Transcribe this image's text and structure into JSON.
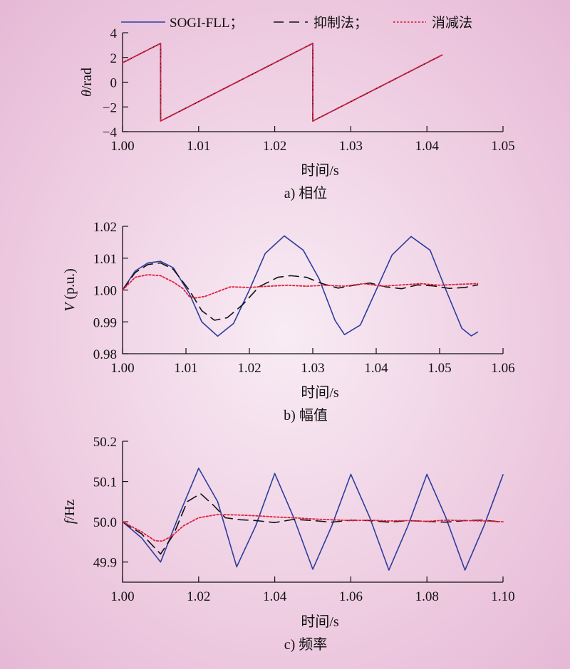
{
  "legend": [
    {
      "label": "SOGI-FLL；",
      "color": "#2b3e9e",
      "dash": "solid"
    },
    {
      "label": "抑制法；",
      "color": "#111111",
      "dash": "long-dash"
    },
    {
      "label": "消减法",
      "color": "#e0203a",
      "dash": "dotted"
    }
  ],
  "chart_data": [
    {
      "type": "line",
      "caption": "a) 相位",
      "xlabel": "时间/s",
      "ylabel_italic": "θ",
      "ylabel_rest": "/rad",
      "xlim": [
        1.0,
        1.05
      ],
      "ylim": [
        -4,
        4
      ],
      "xticks": [
        "1.00",
        "1.01",
        "1.02",
        "1.03",
        "1.04",
        "1.05"
      ],
      "yticks": [
        "4",
        "2",
        "0",
        "−2",
        "−4"
      ],
      "series": [
        {
          "name": "SOGI-FLL",
          "x": [
            1.0,
            1.005,
            1.005,
            1.025,
            1.025,
            1.042
          ],
          "y": [
            1.57,
            3.14,
            -3.14,
            3.14,
            -3.14,
            2.2
          ]
        },
        {
          "name": "抑制法",
          "x": [
            1.0,
            1.005,
            1.005,
            1.025,
            1.025,
            1.042
          ],
          "y": [
            1.57,
            3.14,
            -3.14,
            3.14,
            -3.14,
            2.2
          ]
        },
        {
          "name": "消减法",
          "x": [
            1.0,
            1.005,
            1.005,
            1.025,
            1.025,
            1.042
          ],
          "y": [
            1.57,
            3.14,
            -3.14,
            3.14,
            -3.14,
            2.2
          ]
        }
      ]
    },
    {
      "type": "line",
      "caption": "b) 幅值",
      "xlabel": "时间/s",
      "ylabel_italic": "V",
      "ylabel_rest": " (p.u.)",
      "xlim": [
        1.0,
        1.06
      ],
      "ylim": [
        0.98,
        1.02
      ],
      "xticks": [
        "1.00",
        "1.01",
        "1.02",
        "1.03",
        "1.04",
        "1.05",
        "1.06"
      ],
      "yticks": [
        "1.02",
        "1.01",
        "1.00",
        "0.99",
        "0.98"
      ],
      "series": [
        {
          "name": "SOGI-FLL",
          "x": [
            1.0,
            1.002,
            1.004,
            1.006,
            1.008,
            1.0105,
            1.0125,
            1.015,
            1.0175,
            1.02,
            1.0225,
            1.0255,
            1.0285,
            1.031,
            1.0335,
            1.035,
            1.0375,
            1.04,
            1.0425,
            1.0455,
            1.0485,
            1.051,
            1.0535,
            1.055,
            1.056
          ],
          "y": [
            1.0,
            1.006,
            1.0085,
            1.009,
            1.007,
            0.999,
            0.99,
            0.9855,
            0.9895,
            1.0,
            1.0115,
            1.017,
            1.0125,
            1.0035,
            0.9905,
            0.986,
            0.989,
            1.0,
            1.011,
            1.0168,
            1.0125,
            1.0,
            0.988,
            0.9856,
            0.9868
          ]
        },
        {
          "name": "抑制法",
          "x": [
            1.0,
            1.002,
            1.004,
            1.006,
            1.008,
            1.0105,
            1.0125,
            1.0145,
            1.0165,
            1.019,
            1.0215,
            1.0245,
            1.0265,
            1.029,
            1.0315,
            1.034,
            1.0365,
            1.039,
            1.0415,
            1.044,
            1.0465,
            1.049,
            1.0515,
            1.054,
            1.056
          ],
          "y": [
            1.0,
            1.0055,
            1.008,
            1.0085,
            1.0065,
            1.0,
            0.9935,
            0.9905,
            0.9913,
            0.9955,
            1.001,
            1.004,
            1.0045,
            1.004,
            1.002,
            1.0006,
            1.0015,
            1.0022,
            1.001,
            1.0004,
            1.0016,
            1.0013,
            1.0005,
            1.0008,
            1.0016
          ]
        },
        {
          "name": "消减法",
          "x": [
            1.0,
            1.002,
            1.004,
            1.006,
            1.008,
            1.0095,
            1.0105,
            1.0115,
            1.013,
            1.015,
            1.017,
            1.02,
            1.023,
            1.026,
            1.029,
            1.032,
            1.035,
            1.038,
            1.041,
            1.044,
            1.047,
            1.05,
            1.053,
            1.056
          ],
          "y": [
            1.0,
            1.004,
            1.0048,
            1.0045,
            1.0025,
            1.0005,
            0.998,
            0.9975,
            0.998,
            0.9995,
            1.001,
            1.0008,
            1.0012,
            1.0015,
            1.0012,
            1.0015,
            1.0012,
            1.002,
            1.0012,
            1.0016,
            1.002,
            1.0015,
            1.0018,
            1.002
          ]
        }
      ]
    },
    {
      "type": "line",
      "caption": "c) 频率",
      "xlabel": "时间/s",
      "ylabel_italic": "f",
      "ylabel_rest": "/Hz",
      "xlim": [
        1.0,
        1.1
      ],
      "ylim": [
        49.85,
        50.2
      ],
      "xticks": [
        "1.00",
        "1.02",
        "1.04",
        "1.06",
        "1.08",
        "1.10"
      ],
      "yticks": [
        "50.2",
        "50.1",
        "50.0",
        "49.9"
      ],
      "series": [
        {
          "name": "SOGI-FLL",
          "x": [
            1.0,
            1.005,
            1.01,
            1.015,
            1.02,
            1.025,
            1.03,
            1.035,
            1.04,
            1.045,
            1.05,
            1.055,
            1.06,
            1.065,
            1.07,
            1.075,
            1.08,
            1.085,
            1.09,
            1.095,
            1.1
          ],
          "y": [
            50.0,
            49.96,
            49.9,
            50.02,
            50.133,
            50.05,
            49.888,
            49.99,
            50.12,
            50.01,
            49.882,
            49.99,
            50.118,
            50.01,
            49.88,
            49.99,
            50.118,
            50.01,
            49.88,
            49.99,
            50.117
          ]
        },
        {
          "name": "抑制法",
          "x": [
            1.0,
            1.005,
            1.01,
            1.0135,
            1.017,
            1.0205,
            1.024,
            1.027,
            1.031,
            1.035,
            1.04,
            1.045,
            1.05,
            1.055,
            1.06,
            1.065,
            1.07,
            1.075,
            1.08,
            1.085,
            1.09,
            1.095,
            1.1
          ],
          "y": [
            50.0,
            49.97,
            49.92,
            49.97,
            50.05,
            50.07,
            50.04,
            50.01,
            50.005,
            50.003,
            49.998,
            50.006,
            50.003,
            49.999,
            50.004,
            50.003,
            49.999,
            50.003,
            50.001,
            49.999,
            50.003,
            50.004,
            49.999
          ]
        },
        {
          "name": "消减法",
          "x": [
            1.0,
            1.005,
            1.0085,
            1.0105,
            1.013,
            1.016,
            1.02,
            1.025,
            1.03,
            1.035,
            1.04,
            1.045,
            1.05,
            1.055,
            1.06,
            1.065,
            1.07,
            1.075,
            1.08,
            1.085,
            1.09,
            1.095,
            1.1
          ],
          "y": [
            50.0,
            49.975,
            49.953,
            49.952,
            49.965,
            49.99,
            50.01,
            50.018,
            50.017,
            50.015,
            50.012,
            50.01,
            50.007,
            50.005,
            50.003,
            50.004,
            50.002,
            50.003,
            50.001,
            50.004,
            50.003,
            50.002,
            50.0
          ]
        }
      ]
    }
  ]
}
